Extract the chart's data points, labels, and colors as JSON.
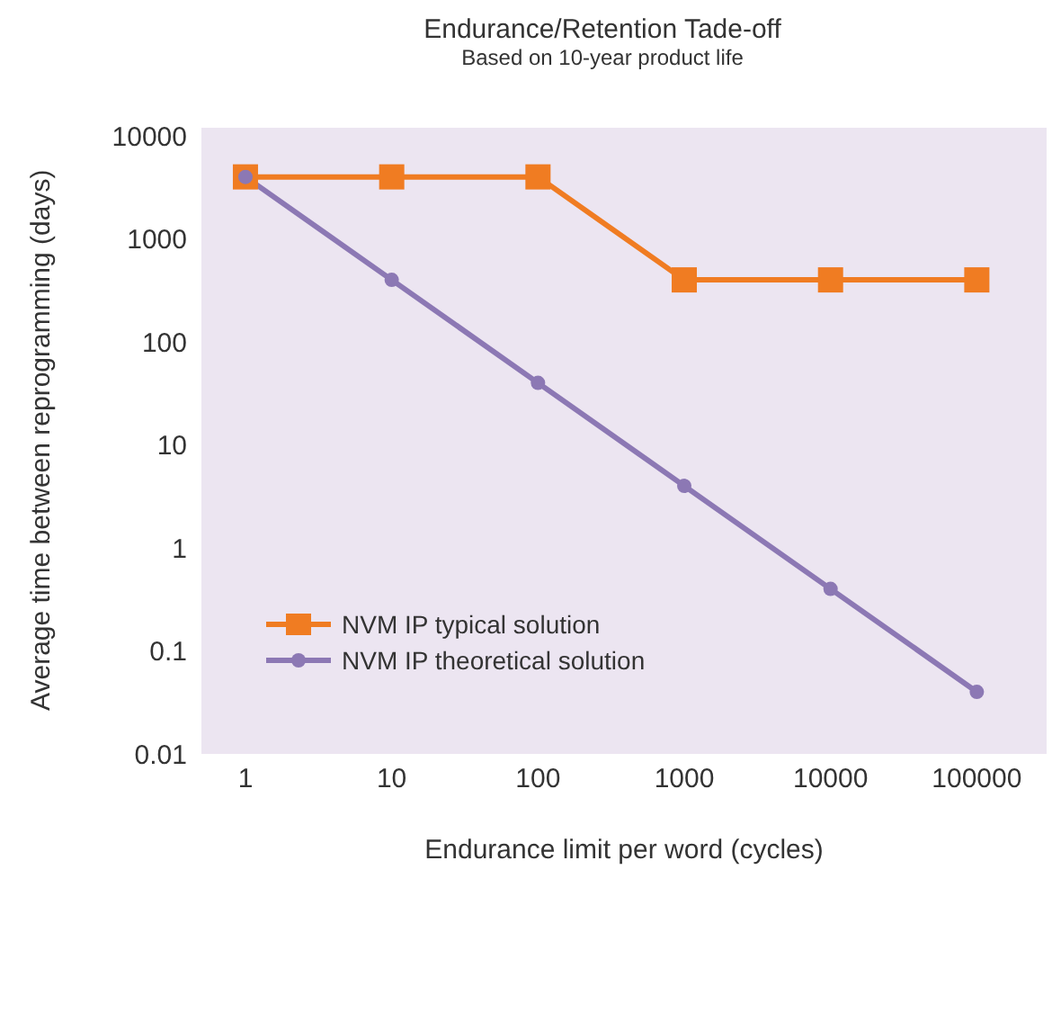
{
  "chart_data": {
    "type": "line",
    "title": "Endurance/Retention Tade-off",
    "subtitle": "Based on 10-year product life",
    "xlabel": "Endurance limit per word (cycles)",
    "ylabel": "Average time between reprogramming (days)",
    "x": [
      1,
      10,
      100,
      1000,
      10000,
      100000
    ],
    "series": [
      {
        "name": "NVM IP typical solution",
        "color": "#f07c22",
        "marker": "square",
        "values": [
          4000,
          4000,
          4000,
          400,
          400,
          400
        ]
      },
      {
        "name": "NVM IP theoretical solution",
        "color": "#8c78b4",
        "marker": "circle",
        "values": [
          4000,
          400,
          40,
          4,
          0.4,
          0.04
        ]
      }
    ],
    "log": "xy",
    "xlim": [
      0.5,
      300000
    ],
    "xticks": [
      1,
      10,
      100,
      1000,
      10000,
      100000
    ],
    "ylim": [
      0.01,
      12000
    ],
    "yticks": [
      0.01,
      0.1,
      1,
      10,
      100,
      1000,
      10000
    ],
    "grid": false,
    "legend": "bottom left",
    "line_style": "solid"
  }
}
